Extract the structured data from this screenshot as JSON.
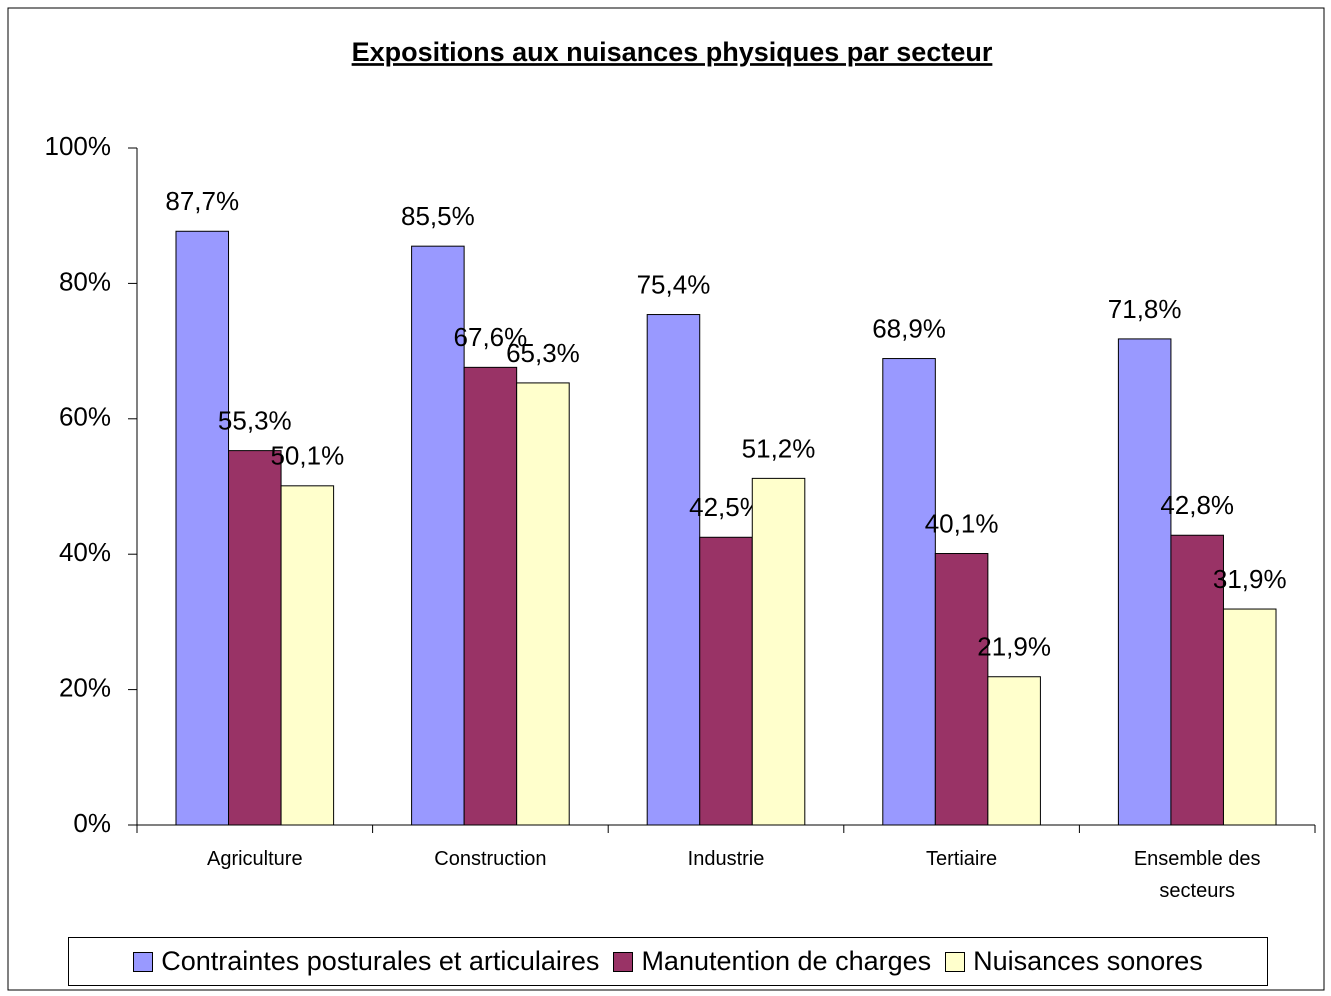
{
  "chart_data": {
    "type": "bar",
    "title": "Expositions aux nuisances physiques par secteur",
    "categories": [
      "Agriculture",
      "Construction",
      "Industrie",
      "Tertiaire",
      "Ensemble des secteurs"
    ],
    "series": [
      {
        "name": "Contraintes posturales et articulaires",
        "color": "#9999ff",
        "values": [
          87.7,
          85.5,
          75.4,
          68.9,
          71.8
        ],
        "value_labels": [
          "87,7%",
          "85,5%",
          "75,4%",
          "68,9%",
          "71,8%"
        ]
      },
      {
        "name": "Manutention de charges",
        "color": "#993366",
        "values": [
          55.3,
          67.6,
          42.5,
          40.1,
          42.8
        ],
        "value_labels": [
          "55,3%",
          "67,6%",
          "42,5%",
          "40,1%",
          "42,8%"
        ]
      },
      {
        "name": "Nuisances sonores",
        "color": "#ffffcc",
        "values": [
          50.1,
          65.3,
          51.2,
          21.9,
          31.9
        ],
        "value_labels": [
          "50,1%",
          "65,3%",
          "51,2%",
          "21,9%",
          "31,9%"
        ]
      }
    ],
    "ylim": [
      0,
      100
    ],
    "yticks": [
      {
        "value": 0,
        "label": "0%"
      },
      {
        "value": 20,
        "label": "20%"
      },
      {
        "value": 40,
        "label": "40%"
      },
      {
        "value": 60,
        "label": "60%"
      },
      {
        "value": 80,
        "label": "80%"
      },
      {
        "value": 100,
        "label": "100%"
      }
    ],
    "grid": false,
    "legend": "bottom"
  }
}
